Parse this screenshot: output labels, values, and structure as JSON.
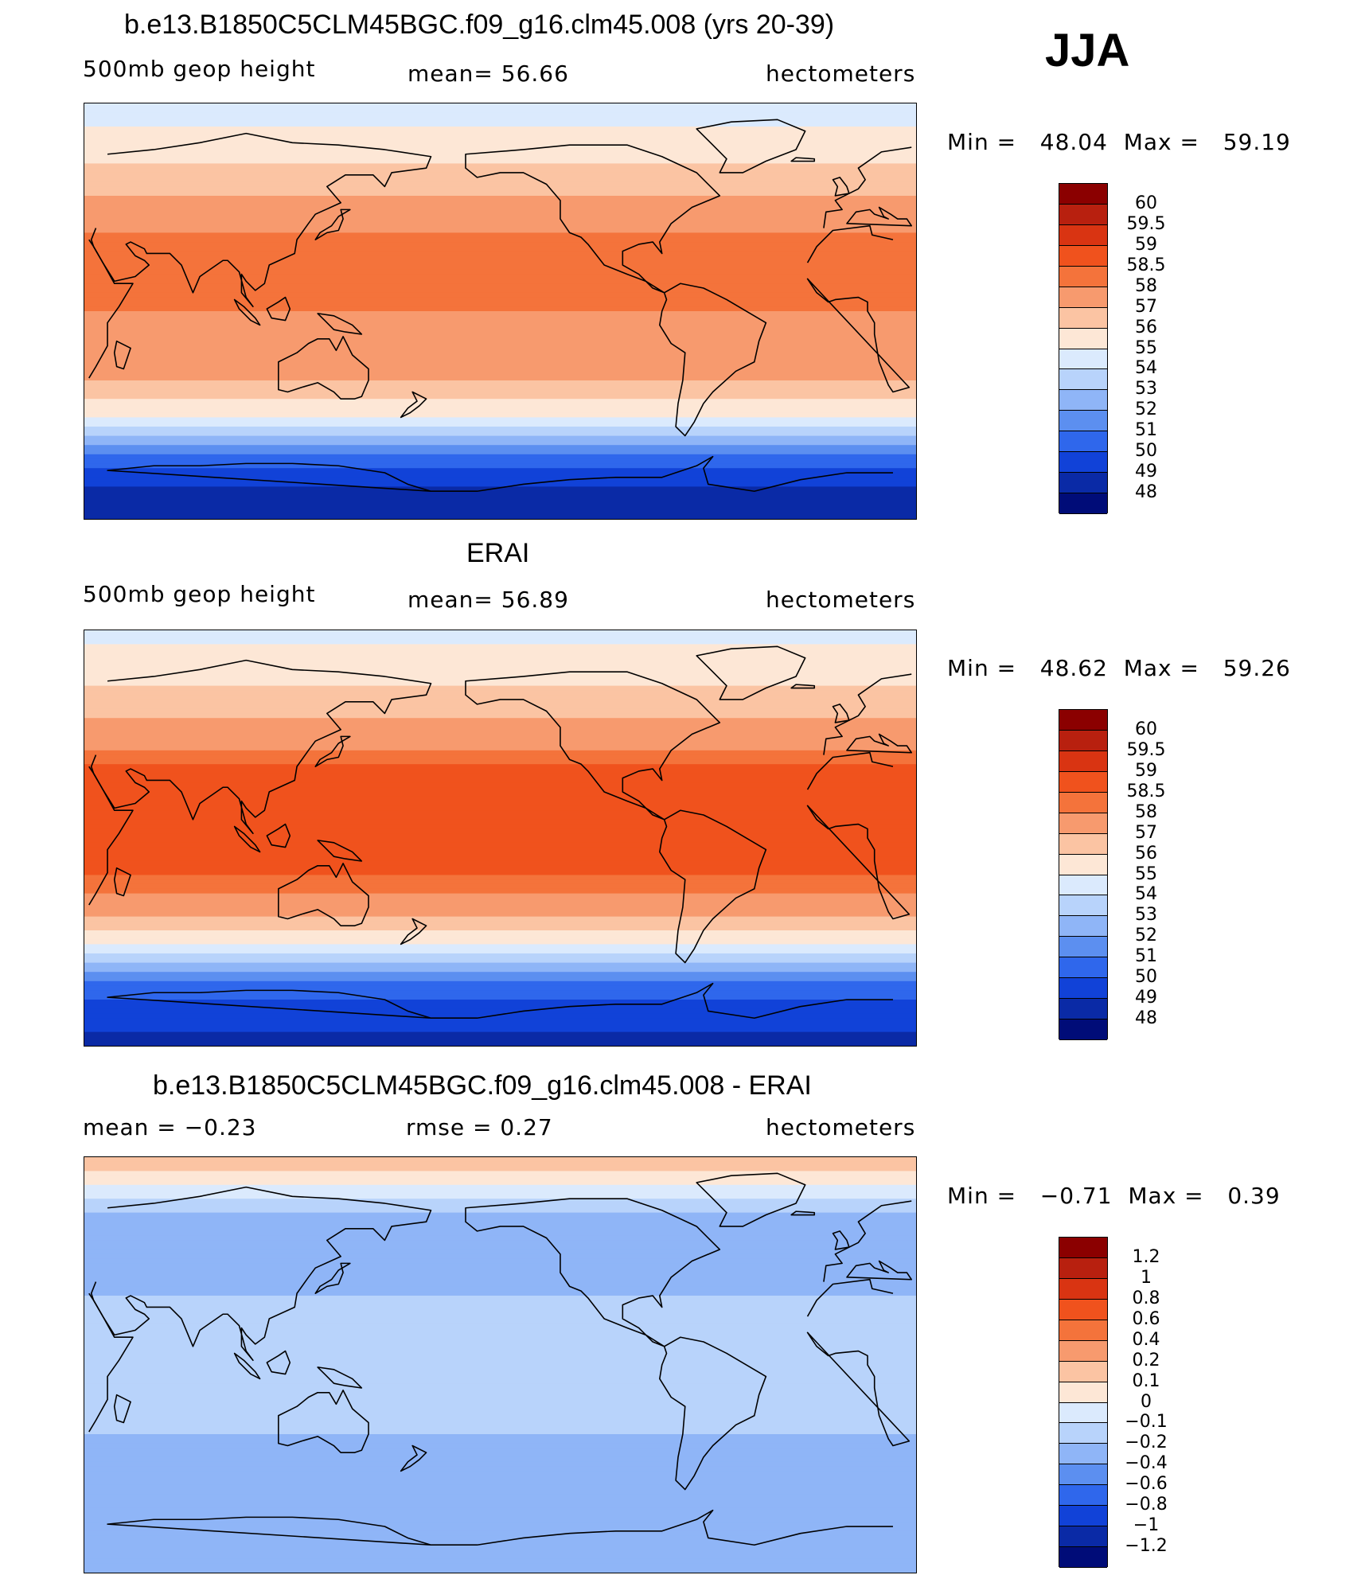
{
  "season": "JJA",
  "panels": [
    {
      "title": "b.e13.B1850C5CLM45BGC.f09_g16.clm45.008 (yrs 20-39)",
      "left_label": "500mb  geop  height",
      "center_label": "mean=   56.66",
      "right_label": "hectometers",
      "minmax": {
        "min_label": "Min  =",
        "min": "48.04",
        "max_label": "Max  =",
        "max": "59.19"
      }
    },
    {
      "title": "ERAI",
      "left_label": "500mb  geop  height",
      "center_label": "mean=   56.89",
      "right_label": "hectometers",
      "minmax": {
        "min_label": "Min  =",
        "min": "48.62",
        "max_label": "Max  =",
        "max": "59.26"
      }
    },
    {
      "title": "b.e13.B1850C5CLM45BGC.f09_g16.clm45.008 - ERAI",
      "left_label": "mean  =    −0.23",
      "center_label": "rmse  =     0.27",
      "right_label": "hectometers",
      "minmax": {
        "min_label": "Min  =",
        "min": "−0.71",
        "max_label": "Max  =",
        "max": "0.39"
      }
    }
  ],
  "chart_data": [
    {
      "type": "heatmap",
      "title": "b.e13.B1850C5CLM45BGC.f09_g16.clm45.008 (yrs 20-39)",
      "variable": "500mb geop height",
      "units": "hectometers",
      "mean": 56.66,
      "min": 48.04,
      "max": 59.19,
      "colorbar_levels": [
        "60",
        "59.5",
        "59",
        "58.5",
        "58",
        "57",
        "56",
        "55",
        "54",
        "53",
        "52",
        "51",
        "50",
        "49",
        "48"
      ],
      "colorbar_colors": [
        "#8b0000",
        "#b8200f",
        "#d93412",
        "#f0521d",
        "#f4733b",
        "#f79a6e",
        "#fbc4a3",
        "#fde7d6",
        "#dbeafd",
        "#b8d3fb",
        "#8fb5f7",
        "#5c8ff0",
        "#2f67ec",
        "#1142d8",
        "#0a2aa6",
        "#000c78"
      ],
      "zonal_profile_lat": [
        90,
        70,
        50,
        30,
        15,
        0,
        -15,
        -30,
        -45,
        -55,
        -65,
        -75,
        -90
      ],
      "zonal_profile_value": [
        54.5,
        55.5,
        57.0,
        58.3,
        58.0,
        58.0,
        57.9,
        57.0,
        55.0,
        52.5,
        50.5,
        49.0,
        48.3
      ]
    },
    {
      "type": "heatmap",
      "title": "ERAI",
      "variable": "500mb geop height",
      "units": "hectometers",
      "mean": 56.89,
      "min": 48.62,
      "max": 59.26,
      "colorbar_levels": [
        "60",
        "59.5",
        "59",
        "58.5",
        "58",
        "57",
        "56",
        "55",
        "54",
        "53",
        "52",
        "51",
        "50",
        "49",
        "48"
      ],
      "colorbar_colors": [
        "#8b0000",
        "#b8200f",
        "#d93412",
        "#f0521d",
        "#f4733b",
        "#f79a6e",
        "#fbc4a3",
        "#fde7d6",
        "#dbeafd",
        "#b8d3fb",
        "#8fb5f7",
        "#5c8ff0",
        "#2f67ec",
        "#1142d8",
        "#0a2aa6",
        "#000c78"
      ],
      "zonal_profile_lat": [
        90,
        70,
        50,
        30,
        15,
        0,
        -15,
        -30,
        -45,
        -55,
        -65,
        -75,
        -90
      ],
      "zonal_profile_value": [
        54.7,
        55.7,
        57.1,
        58.6,
        58.6,
        58.6,
        58.6,
        57.5,
        55.0,
        52.5,
        50.5,
        49.3,
        48.8
      ]
    },
    {
      "type": "heatmap",
      "title": "b.e13.B1850C5CLM45BGC.f09_g16.clm45.008 - ERAI",
      "variable": "difference",
      "units": "hectometers",
      "mean": -0.23,
      "rmse": 0.27,
      "min": -0.71,
      "max": 0.39,
      "colorbar_levels": [
        "1.2",
        "1",
        "0.8",
        "0.6",
        "0.4",
        "0.2",
        "0.1",
        "0",
        "−0.1",
        "−0.2",
        "−0.4",
        "−0.6",
        "−0.8",
        "−1",
        "−1.2"
      ],
      "colorbar_colors": [
        "#8b0000",
        "#b8200f",
        "#d93412",
        "#f0521d",
        "#f4733b",
        "#f79a6e",
        "#fbc4a3",
        "#fde7d6",
        "#dbeafd",
        "#b8d3fb",
        "#8fb5f7",
        "#5c8ff0",
        "#2f67ec",
        "#1142d8",
        "#0a2aa6",
        "#000c78"
      ],
      "zonal_profile_lat": [
        90,
        60,
        30,
        0,
        -30,
        -60,
        -90
      ],
      "zonal_profile_value": [
        0.2,
        -0.3,
        -0.2,
        -0.2,
        -0.2,
        -0.3,
        -0.3
      ]
    }
  ]
}
